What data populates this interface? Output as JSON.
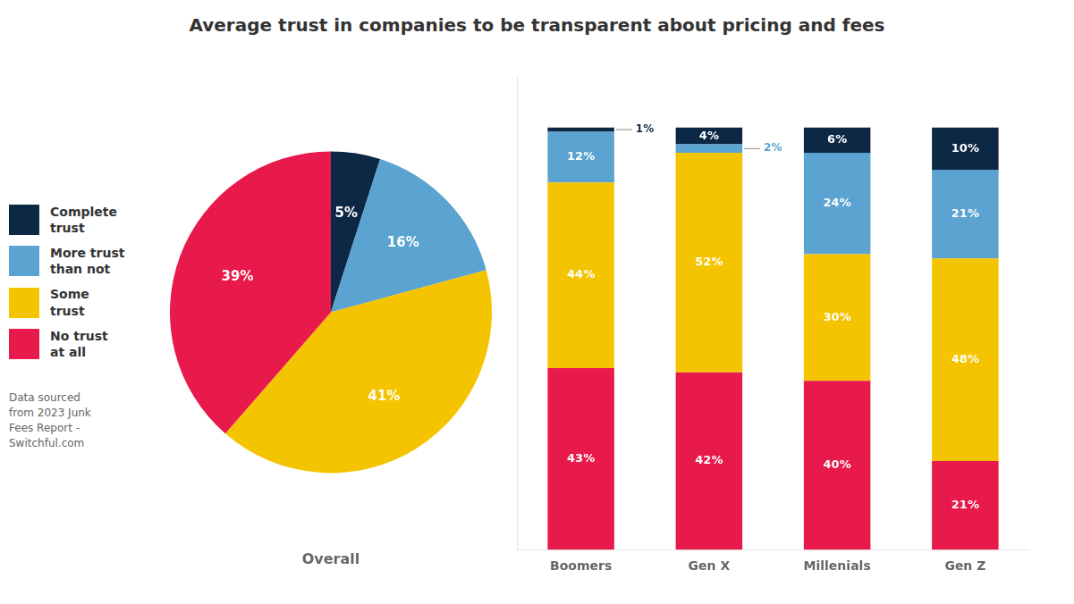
{
  "chart_data": [
    {
      "type": "pie",
      "title": "Average trust in companies to be transparent about pricing and fees",
      "subtitle": "Overall",
      "source": "Data sourced\nfrom 2023 Junk\nFees Report -\nSwitchful.com",
      "categories": [
        "Complete\ntrust",
        "More trust\nthan not",
        "Some\ntrust",
        "No trust\nat all"
      ],
      "values": [
        5,
        16,
        41,
        39
      ],
      "value_labels": [
        "5%",
        "16%",
        "41%",
        "39%"
      ],
      "colors": [
        "#0d2845",
        "#5ba3d0",
        "#f5c400",
        "#e8194b"
      ],
      "data_labels": true,
      "legend": "left"
    },
    {
      "type": "bar",
      "stacked": true,
      "categories": [
        "Boomers",
        "Gen X",
        "Millenials",
        "Gen Z"
      ],
      "series": [
        {
          "name": "No trust\nat all",
          "color": "#e8194b",
          "values": [
            43,
            42,
            40,
            21
          ],
          "value_labels": [
            "43%",
            "42%",
            "40%",
            "21%"
          ]
        },
        {
          "name": "Some\ntrust",
          "color": "#f5c400",
          "values": [
            44,
            52,
            30,
            48
          ],
          "value_labels": [
            "44%",
            "52%",
            "30%",
            "48%"
          ]
        },
        {
          "name": "More trust\nthan not",
          "color": "#5ba3d0",
          "values": [
            12,
            2,
            24,
            21
          ],
          "value_labels": [
            "12%",
            "2%",
            "24%",
            "21%"
          ]
        },
        {
          "name": "Complete\ntrust",
          "color": "#0d2845",
          "values": [
            1,
            4,
            6,
            10
          ],
          "value_labels": [
            "1%",
            "4%",
            "6%",
            "10%"
          ]
        }
      ],
      "ylim": [
        0,
        112
      ],
      "tick_labels": "x",
      "grid": false,
      "data_labels": true
    }
  ]
}
